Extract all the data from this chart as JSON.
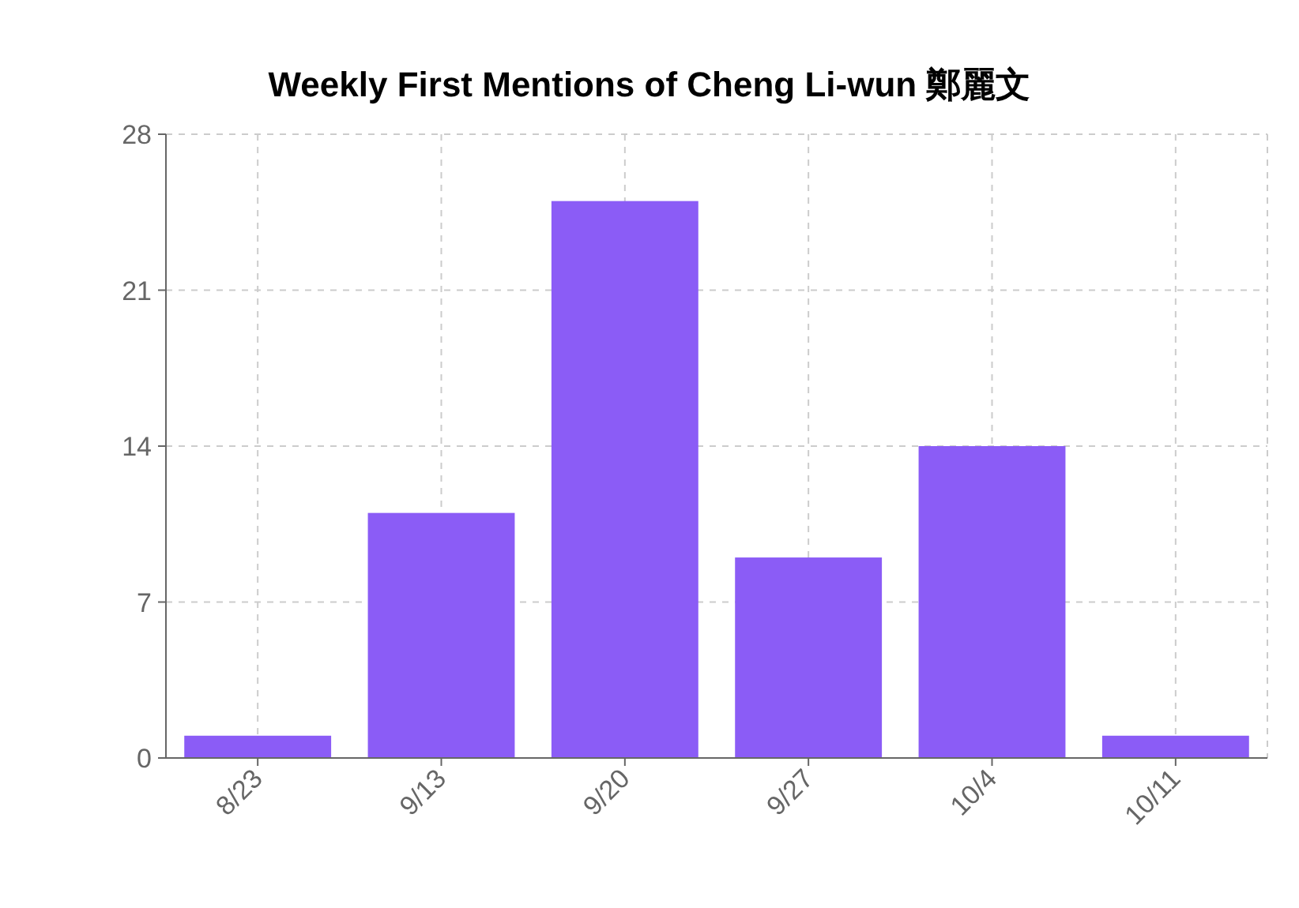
{
  "chart_data": {
    "type": "bar",
    "title": "Weekly First Mentions of Cheng Li-wun 鄭麗文",
    "categories": [
      "8/23",
      "9/13",
      "9/20",
      "9/27",
      "10/4",
      "10/11"
    ],
    "values": [
      1,
      11,
      25,
      9,
      14,
      1
    ],
    "color": "#8b5cf6",
    "ylim": [
      0,
      28
    ],
    "yticks": [
      0,
      7,
      14,
      21,
      28
    ],
    "grid": true
  }
}
